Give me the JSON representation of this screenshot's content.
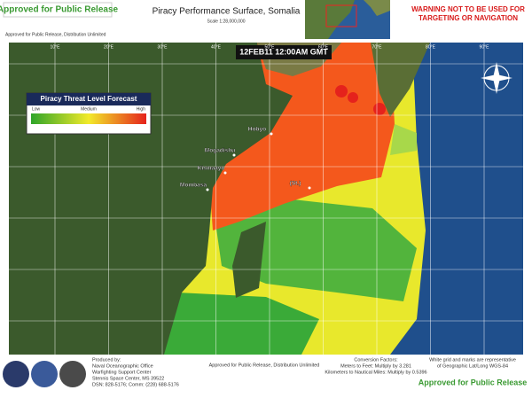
{
  "header": {
    "release_badge": "Approved for Public Release",
    "title": "Piracy Performance Surface, Somalia",
    "scale": "Scale 1:28,000,000",
    "distribution": "Approved for Public Release, Distribution Unlimited",
    "warning": [
      "WARNING NOT TO BE USED FOR",
      "TARGETING OR NAVIGATION"
    ]
  },
  "map": {
    "timestamp": "12FEB11 12:00AM GMT",
    "longitude_labels": [
      "10°E",
      "20°E",
      "30°E",
      "40°E",
      "50°E",
      "60°E",
      "70°E",
      "80°E",
      "90°E"
    ],
    "places": [
      "Hobyo",
      "Mogadishu",
      "Kismaayo",
      "Mombasa",
      "(St.)"
    ]
  },
  "legend": {
    "title": "Piracy Threat Level Forecast",
    "low": "Low",
    "medium": "Medium",
    "high": "High"
  },
  "footer": {
    "producer": [
      "Produced by:",
      "Naval Oceanographic Office",
      "Warfighting Support Center",
      "Stennis Space Center, MS 39522",
      "DSN: 828-5176; Comm: (228) 688-5176"
    ],
    "distribution": "Approved for Public Release, Distribution Unlimited",
    "conversion": [
      "Conversion Factors:",
      "Meters to Feet: Multiply by 3.281",
      "Kilometers to Nautical Miles: Multiply by 0.5396"
    ],
    "grid_note": [
      "White grid and marks are representative",
      "of Geographic Lat/Long WGS-84"
    ],
    "release_badge": "Approved for Public Release"
  }
}
